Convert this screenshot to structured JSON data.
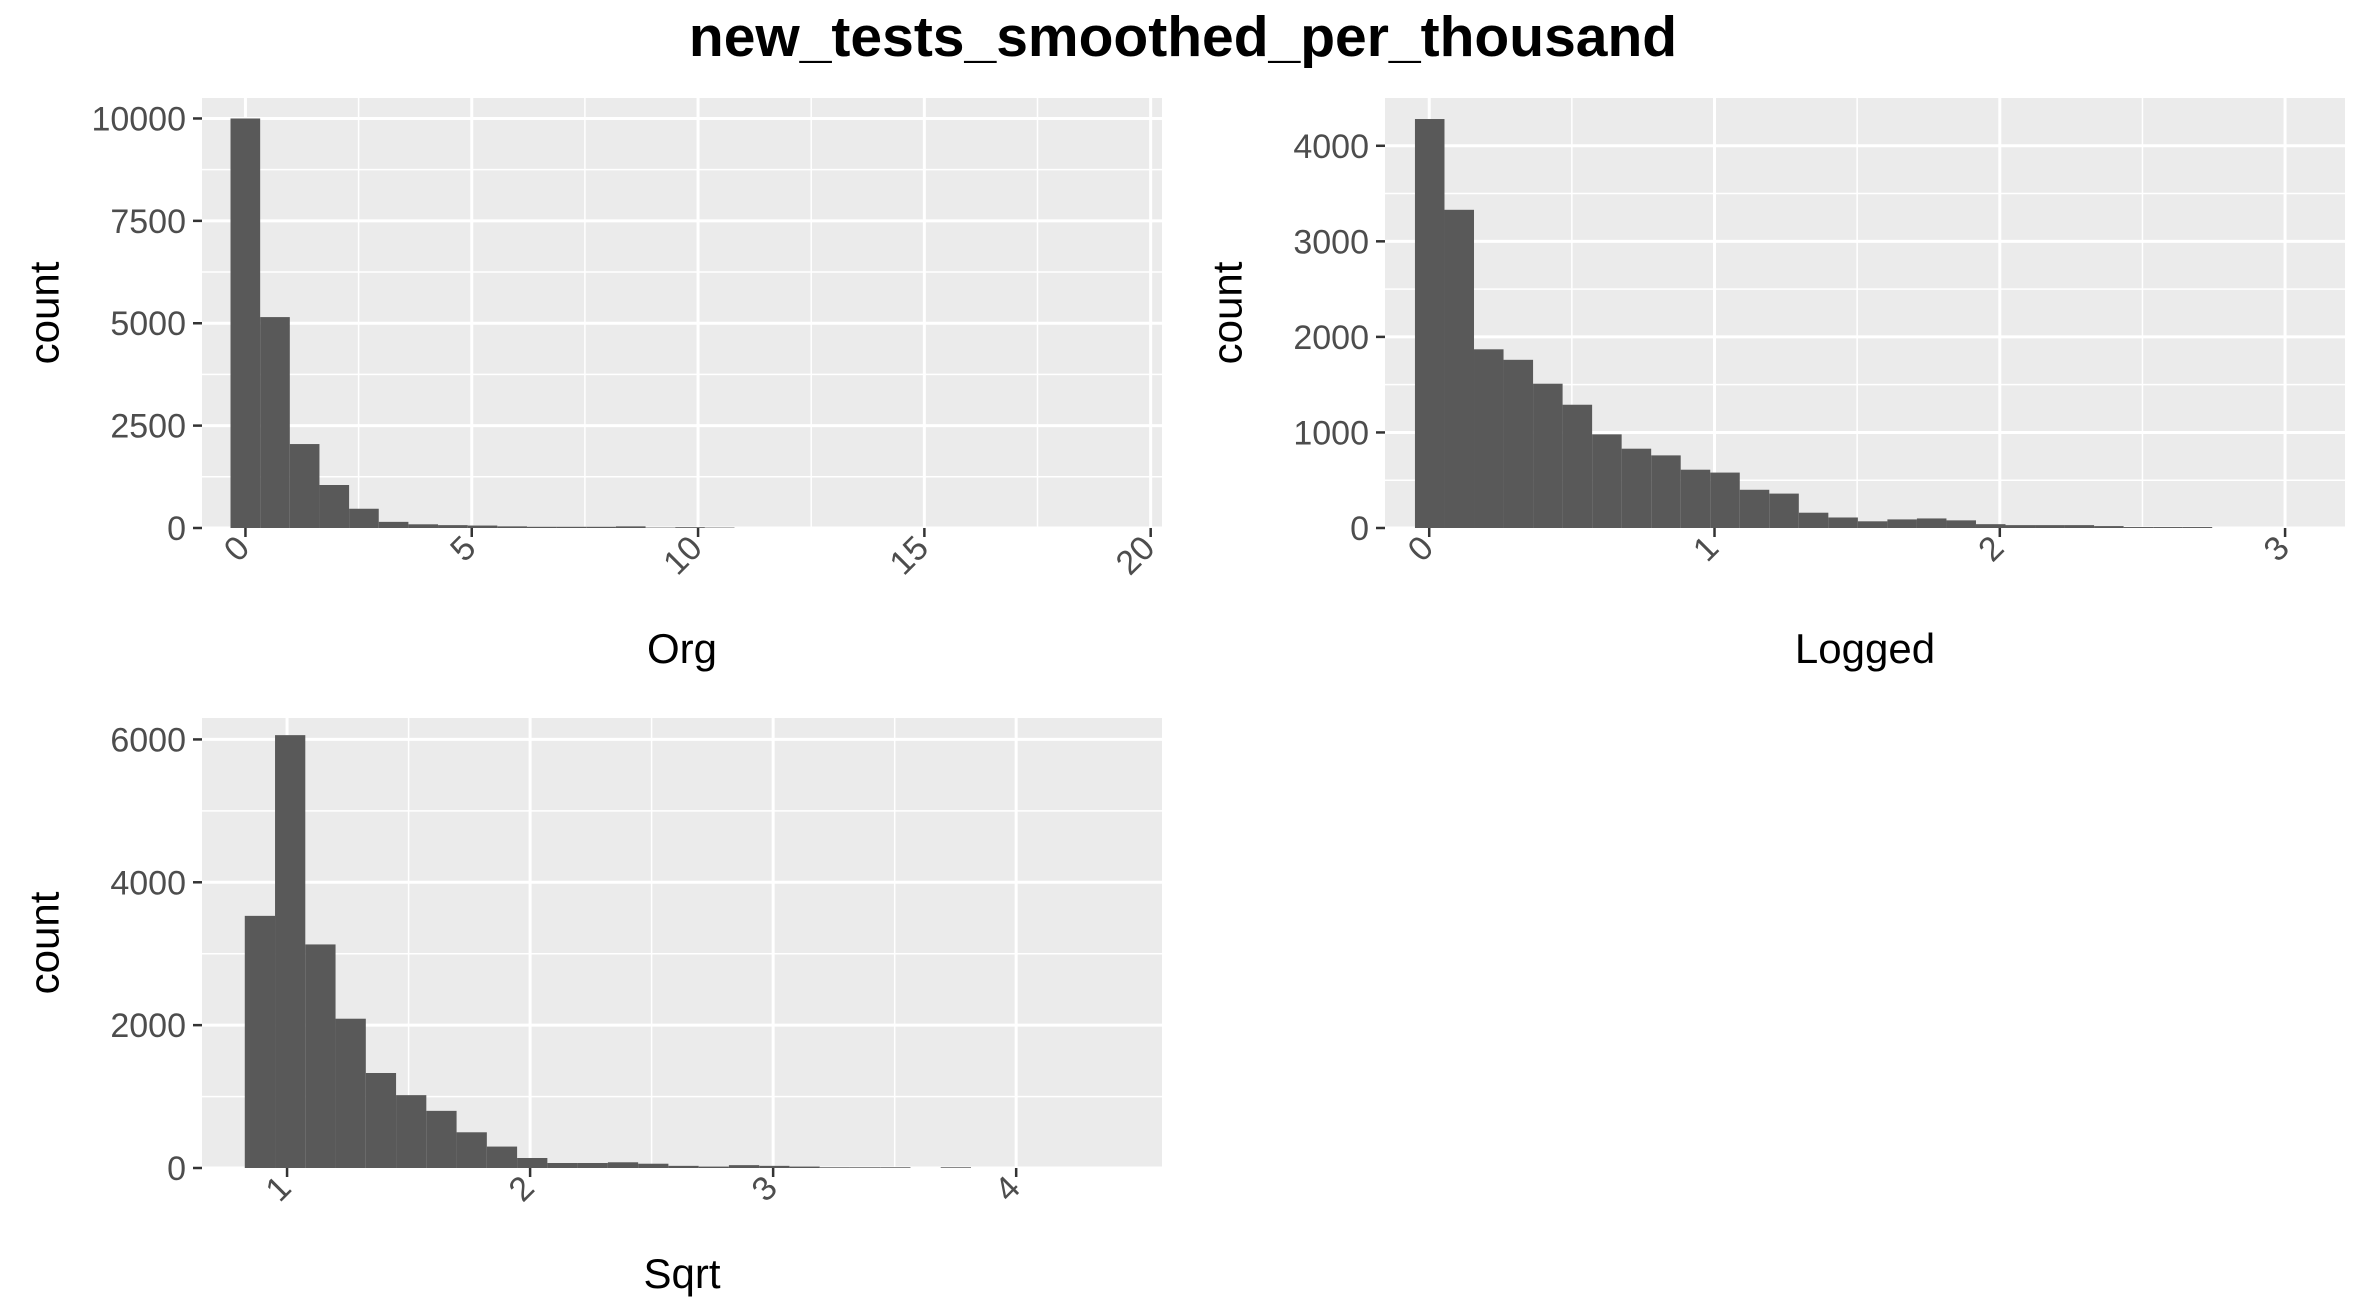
{
  "title": "new_tests_smoothed_per_thousand",
  "colors": {
    "panel_background": "#ebebeb",
    "grid": "#ffffff",
    "bar_fill": "#595959",
    "tick_text": "#4d4d4d"
  },
  "chart_data": [
    {
      "type": "bar",
      "panel": "Org",
      "xlabel": "Org",
      "ylabel": "count",
      "xlim": [
        -0.96,
        20.25
      ],
      "ylim": [
        0,
        10500
      ],
      "x_ticks": [
        0,
        5,
        10,
        15,
        20
      ],
      "x_tick_labels": [
        "0",
        "5",
        "10",
        "15",
        "20"
      ],
      "y_ticks": [
        0,
        2500,
        5000,
        7500,
        10000
      ],
      "y_tick_labels": [
        "0",
        "2500",
        "5000",
        "7500",
        "10000"
      ],
      "grid": true,
      "bin_width": 0.655,
      "bin_starts": [
        -0.33,
        0.325,
        0.98,
        1.635,
        2.29,
        2.945,
        3.6,
        4.255,
        4.91,
        5.565,
        6.22,
        6.875,
        7.53,
        8.185,
        8.84,
        9.495,
        10.15
      ],
      "values": [
        10000,
        5150,
        2050,
        1050,
        470,
        150,
        90,
        70,
        60,
        40,
        30,
        30,
        30,
        40,
        10,
        20,
        10
      ]
    },
    {
      "type": "bar",
      "panel": "Logged",
      "xlabel": "Logged",
      "ylabel": "count",
      "xlim": [
        -0.155,
        3.21
      ],
      "ylim": [
        0,
        4500
      ],
      "x_ticks": [
        0,
        1,
        2,
        3
      ],
      "x_tick_labels": [
        "0",
        "1",
        "2",
        "3"
      ],
      "y_ticks": [
        0,
        1000,
        2000,
        3000,
        4000
      ],
      "y_tick_labels": [
        "0",
        "1000",
        "2000",
        "3000",
        "4000"
      ],
      "grid": true,
      "bin_width": 0.1035,
      "bin_starts": [
        -0.05,
        0.0535,
        0.157,
        0.2605,
        0.364,
        0.4675,
        0.571,
        0.6745,
        0.778,
        0.8815,
        0.985,
        1.0885,
        1.192,
        1.2955,
        1.399,
        1.5025,
        1.606,
        1.7095,
        1.813,
        1.9165,
        2.02,
        2.1235,
        2.227,
        2.3305,
        2.434,
        2.5375,
        2.641
      ],
      "values": [
        4280,
        3330,
        1870,
        1760,
        1510,
        1290,
        980,
        830,
        760,
        610,
        580,
        400,
        360,
        160,
        110,
        70,
        90,
        100,
        80,
        40,
        30,
        30,
        30,
        20,
        10,
        10,
        10
      ]
    },
    {
      "type": "bar",
      "panel": "Sqrt",
      "xlabel": "Sqrt",
      "ylabel": "count",
      "xlim": [
        0.65,
        4.6
      ],
      "ylim": [
        0,
        6300
      ],
      "x_ticks": [
        1,
        2,
        3,
        4
      ],
      "x_tick_labels": [
        "1",
        "2",
        "3",
        "4"
      ],
      "y_ticks": [
        0,
        2000,
        4000,
        6000
      ],
      "y_tick_labels": [
        "0",
        "2000",
        "4000",
        "6000"
      ],
      "grid": true,
      "bin_width": 0.1245,
      "bin_starts": [
        0.826,
        0.9505,
        1.075,
        1.1995,
        1.324,
        1.4485,
        1.573,
        1.6975,
        1.822,
        1.9465,
        2.071,
        2.1955,
        2.32,
        2.4445,
        2.569,
        2.6935,
        2.818,
        2.9425,
        3.067,
        3.1915,
        3.316,
        3.4405,
        3.565,
        3.6895,
        3.814
      ],
      "values": [
        3530,
        6060,
        3130,
        2090,
        1330,
        1020,
        800,
        500,
        300,
        140,
        70,
        70,
        80,
        60,
        30,
        20,
        40,
        30,
        20,
        10,
        10,
        10,
        0,
        10,
        0
      ]
    }
  ]
}
